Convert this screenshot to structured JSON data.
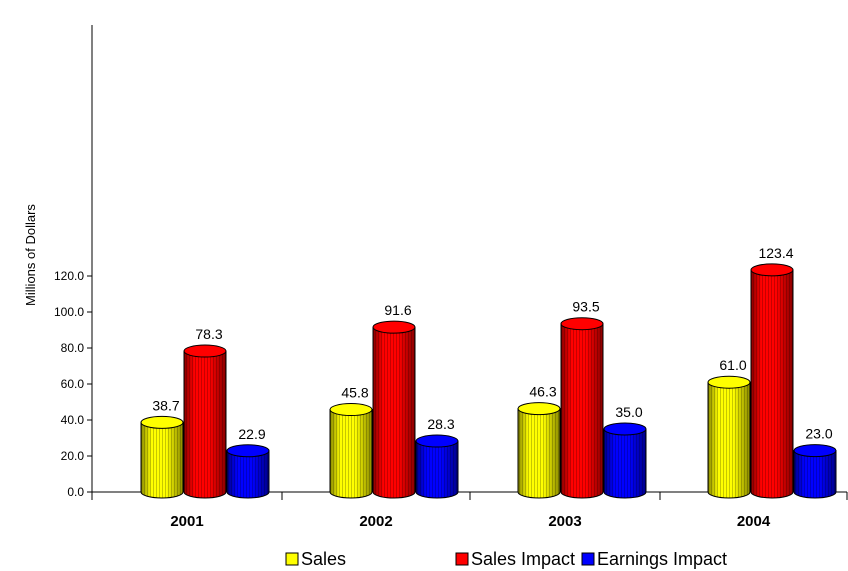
{
  "chart_data": {
    "type": "bar",
    "title": "",
    "xlabel": "",
    "ylabel": "Millions of Dollars",
    "ylim": [
      0,
      120
    ],
    "yticks": [
      "0.0",
      "20.0",
      "40.0",
      "60.0",
      "80.0",
      "100.0",
      "120.0"
    ],
    "categories": [
      "2001",
      "2002",
      "2003",
      "2004"
    ],
    "series": [
      {
        "name": "Sales",
        "values": [
          38.7,
          45.8,
          46.3,
          61.0
        ],
        "labels": [
          "38.7",
          "45.8",
          "46.3",
          "61.0"
        ],
        "color": "#ffff00",
        "dark": "#8a8a00"
      },
      {
        "name": "Sales Impact",
        "values": [
          78.3,
          91.6,
          93.5,
          123.4
        ],
        "labels": [
          "78.3",
          "91.6",
          "93.5",
          "123.4"
        ],
        "color": "#ff0000",
        "dark": "#8a0000"
      },
      {
        "name": "Earnings Impact",
        "values": [
          22.9,
          28.3,
          35.0,
          23.0
        ],
        "labels": [
          "22.9",
          "28.3",
          "35.0",
          "23.0"
        ],
        "color": "#0000ff",
        "dark": "#00008a"
      }
    ],
    "legend": "bottom",
    "grid": false,
    "style": "3d-cylinder"
  }
}
